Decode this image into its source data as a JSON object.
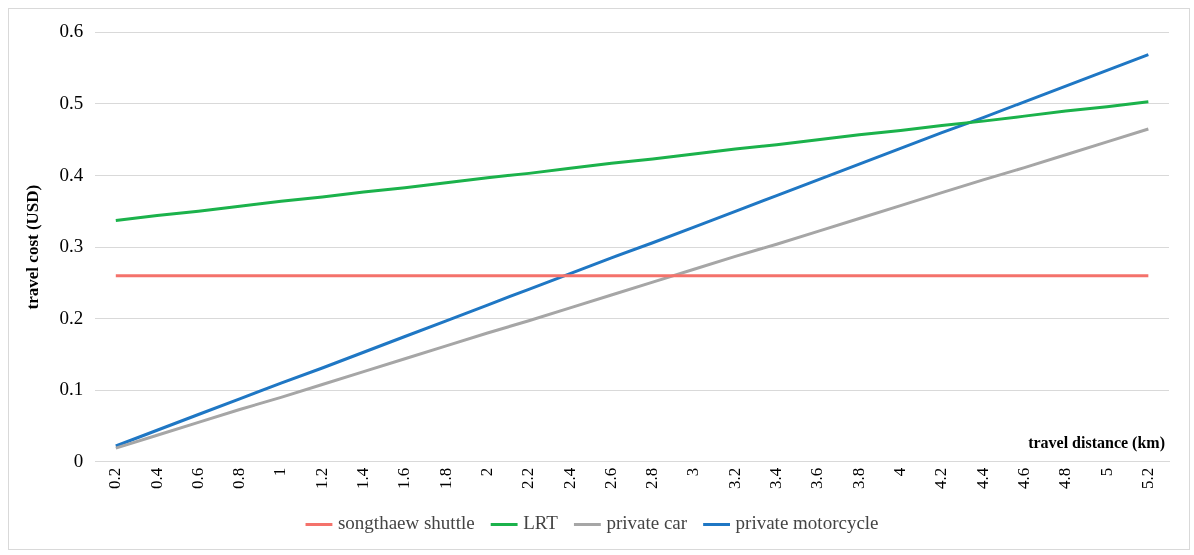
{
  "chart_data": {
    "type": "line",
    "xlabel": "travel distance (km)",
    "ylabel": "travel cost (USD)",
    "categories": [
      "0.2",
      "0.4",
      "0.6",
      "0.8",
      "1",
      "1.2",
      "1.4",
      "1.6",
      "1.8",
      "2",
      "2.2",
      "2.4",
      "2.6",
      "2.8",
      "3",
      "3.2",
      "3.4",
      "3.6",
      "3.8",
      "4",
      "4.2",
      "4.4",
      "4.6",
      "4.8",
      "5",
      "5.2"
    ],
    "series": [
      {
        "name": "songthaew shuttle",
        "color": "#f4726b",
        "values": [
          0.26,
          0.26,
          0.26,
          0.26,
          0.26,
          0.26,
          0.26,
          0.26,
          0.26,
          0.26,
          0.26,
          0.26,
          0.26,
          0.26,
          0.26,
          0.26,
          0.26,
          0.26,
          0.26,
          0.26,
          0.26,
          0.26,
          0.26,
          0.26,
          0.26,
          0.26
        ]
      },
      {
        "name": "LRT",
        "color": "#1bb24b",
        "values": [
          0.337,
          0.344,
          0.35,
          0.357,
          0.364,
          0.37,
          0.377,
          0.383,
          0.39,
          0.397,
          0.403,
          0.41,
          0.417,
          0.423,
          0.43,
          0.437,
          0.443,
          0.45,
          0.457,
          0.463,
          0.47,
          0.476,
          0.483,
          0.49,
          0.496,
          0.503
        ]
      },
      {
        "name": "private car",
        "color": "#a6a6a6",
        "values": [
          0.019,
          0.037,
          0.055,
          0.073,
          0.09,
          0.108,
          0.126,
          0.144,
          0.162,
          0.18,
          0.197,
          0.215,
          0.233,
          0.251,
          0.269,
          0.287,
          0.304,
          0.322,
          0.34,
          0.358,
          0.376,
          0.394,
          0.411,
          0.429,
          0.447,
          0.465
        ]
      },
      {
        "name": "private motorcycle",
        "color": "#1f77c4",
        "values": [
          0.022,
          0.044,
          0.066,
          0.088,
          0.11,
          0.131,
          0.153,
          0.175,
          0.197,
          0.219,
          0.241,
          0.263,
          0.285,
          0.306,
          0.328,
          0.35,
          0.372,
          0.394,
          0.416,
          0.438,
          0.46,
          0.481,
          0.503,
          0.525,
          0.547,
          0.569
        ]
      }
    ],
    "ylim": [
      0,
      0.6
    ],
    "yticks": [
      0,
      0.1,
      0.2,
      0.3,
      0.4,
      0.5,
      0.6
    ],
    "grid": "y",
    "legend": "bottom",
    "marker": "none",
    "line_style": "solid"
  }
}
